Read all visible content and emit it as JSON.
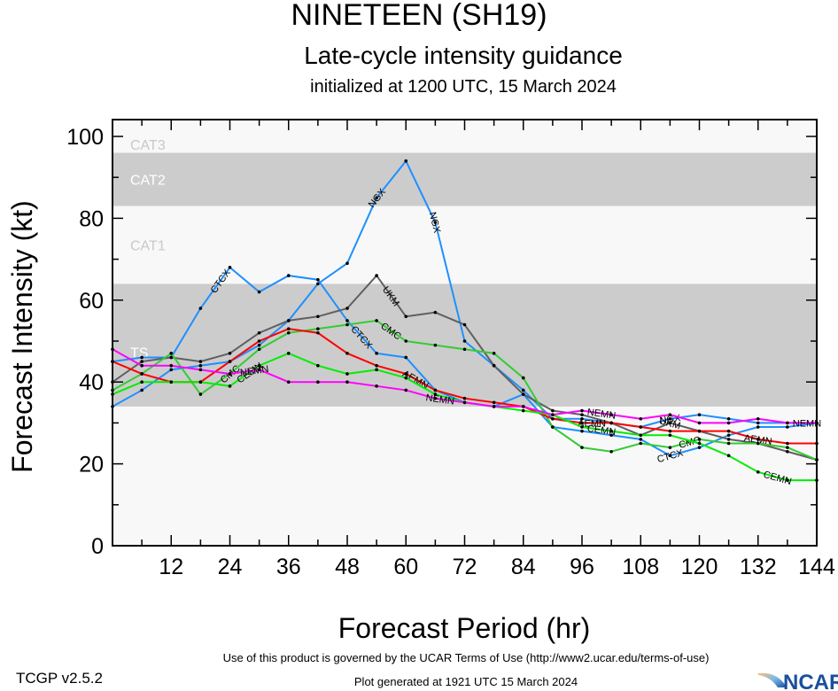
{
  "chart_data": {
    "type": "line",
    "title": "NINETEEN (SH19)",
    "subtitle": "Late-cycle intensity guidance",
    "subtitle2": "initialized at 1200 UTC, 15 March 2024",
    "xlabel": "Forecast Period (hr)",
    "ylabel": "Forecast Intensity (kt)",
    "xlim": [
      0,
      144
    ],
    "ylim": [
      0,
      100
    ],
    "xticks": [
      12,
      24,
      36,
      48,
      60,
      72,
      84,
      96,
      108,
      120,
      132,
      144
    ],
    "yticks": [
      0,
      20,
      40,
      60,
      80,
      100
    ],
    "bands": [
      {
        "label": "TS",
        "from": 34,
        "to": 64,
        "fill": "#cccccc"
      },
      {
        "label": "CAT1",
        "from": 64,
        "to": 83,
        "fill": "#f8f8f8"
      },
      {
        "label": "CAT2",
        "from": 83,
        "to": 96,
        "fill": "#cccccc"
      },
      {
        "label": "CAT3",
        "from": 96,
        "to": 100,
        "fill": "#f8f8f8"
      }
    ],
    "below_band_fill": "#f8f8f8",
    "x": [
      0,
      6,
      12,
      18,
      24,
      30,
      36,
      42,
      48,
      54,
      60,
      66,
      72,
      78,
      84,
      90,
      96,
      102,
      108,
      114,
      120,
      126,
      132,
      138,
      144
    ],
    "series": [
      {
        "name": "NGX",
        "color": "#1e90ff",
        "label_at": [
          54,
          66,
          114
        ],
        "values": [
          34,
          38,
          43,
          44,
          45,
          49,
          55,
          64,
          69,
          85,
          94,
          79,
          50,
          44,
          38,
          31,
          31,
          30,
          29,
          31,
          32,
          31,
          30,
          30,
          30
        ]
      },
      {
        "name": "CTCX",
        "color": "#1e90ff",
        "label_at": [
          22,
          51,
          114
        ],
        "values": [
          45,
          46,
          46,
          58,
          68,
          62,
          66,
          65,
          55,
          47,
          46,
          38,
          35,
          34,
          37,
          29,
          28,
          27,
          26,
          22,
          24,
          27,
          29,
          29,
          30
        ]
      },
      {
        "name": "UKM",
        "color": "#606060",
        "label_at": [
          57,
          114
        ],
        "values": [
          40,
          45,
          46,
          45,
          47,
          52,
          55,
          56,
          58,
          66,
          56,
          57,
          54,
          44,
          37,
          33,
          32,
          30,
          27,
          30,
          28,
          26,
          25,
          23,
          21
        ]
      },
      {
        "name": "CMC",
        "color": "#33cc33",
        "label_at": [
          24,
          57,
          118
        ],
        "values": [
          38,
          42,
          47,
          37,
          42,
          48,
          52,
          53,
          54,
          55,
          50,
          49,
          48,
          47,
          41,
          29,
          24,
          23,
          25,
          24,
          26,
          25,
          25,
          24,
          21
        ]
      },
      {
        "name": "AEMN",
        "color": "#ff0000",
        "label_at": [
          62,
          98,
          132
        ],
        "values": [
          45,
          42,
          40,
          40,
          45,
          50,
          53,
          52,
          47,
          44,
          42,
          38,
          36,
          35,
          34,
          31,
          30,
          30,
          29,
          28,
          28,
          28,
          26,
          25,
          25
        ]
      },
      {
        "name": "CEMN",
        "color": "#00ee00",
        "label_at": [
          28,
          100,
          136
        ],
        "values": [
          37,
          40,
          40,
          40,
          39,
          44,
          47,
          44,
          42,
          43,
          41,
          37,
          35,
          34,
          33,
          32,
          29,
          28,
          27,
          27,
          25,
          22,
          18,
          16,
          16
        ]
      },
      {
        "name": "NEMN",
        "color": "#ff00ff",
        "label_at": [
          29,
          67,
          100,
          142
        ],
        "values": [
          48,
          44,
          44,
          43,
          42,
          43,
          40,
          40,
          40,
          39,
          38,
          36,
          35,
          34,
          34,
          32,
          33,
          32,
          31,
          32,
          30,
          30,
          31,
          30,
          30
        ]
      }
    ]
  },
  "footer": {
    "terms": "Use of this product is governed by the UCAR Terms of Use (http://www2.ucar.edu/terms-of-use)",
    "version": "TCGP v2.5.2",
    "generated": "Plot generated at 1921 UTC   15 March 2024",
    "logo": "NCAR"
  }
}
